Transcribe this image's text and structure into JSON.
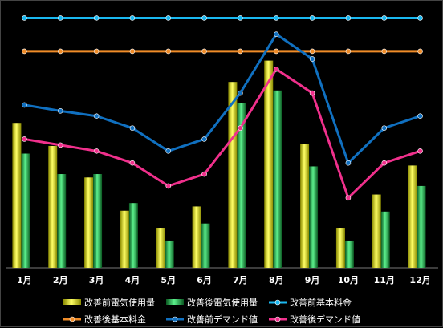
{
  "chart_data": {
    "type": "bar",
    "categories": [
      "1月",
      "2月",
      "3月",
      "4月",
      "5月",
      "6月",
      "7月",
      "8月",
      "9月",
      "10月",
      "11月",
      "12月"
    ],
    "ylim": [
      0,
      300
    ],
    "grid": false,
    "legend_position": "bottom",
    "series": [
      {
        "name": "改善前電気使用量",
        "kind": "bar",
        "color": "#e8e800",
        "values": [
          170,
          143,
          106,
          67,
          47,
          72,
          218,
          243,
          145,
          47,
          86,
          120
        ]
      },
      {
        "name": "改善後電気使用量",
        "kind": "bar",
        "color": "#1aa84a",
        "values": [
          134,
          110,
          110,
          76,
          32,
          52,
          193,
          208,
          119,
          32,
          66,
          96
        ]
      },
      {
        "name": "改善前基本料金",
        "kind": "line",
        "color": "#1ab8f0",
        "values": [
          293,
          293,
          293,
          293,
          293,
          293,
          293,
          293,
          293,
          293,
          293,
          293
        ]
      },
      {
        "name": "改善後基本料金",
        "kind": "line",
        "color": "#f08c28",
        "values": [
          254,
          254,
          254,
          254,
          254,
          254,
          254,
          254,
          254,
          254,
          254,
          254
        ]
      },
      {
        "name": "改善前デマンド値",
        "kind": "line",
        "color": "#1070c0",
        "values": [
          191,
          184,
          178,
          164,
          137,
          151,
          205,
          274,
          245,
          123,
          164,
          178
        ]
      },
      {
        "name": "改善後デマンド値",
        "kind": "line",
        "color": "#f0308c",
        "values": [
          151,
          144,
          137,
          123,
          96,
          110,
          164,
          233,
          205,
          82,
          123,
          137
        ]
      }
    ]
  }
}
